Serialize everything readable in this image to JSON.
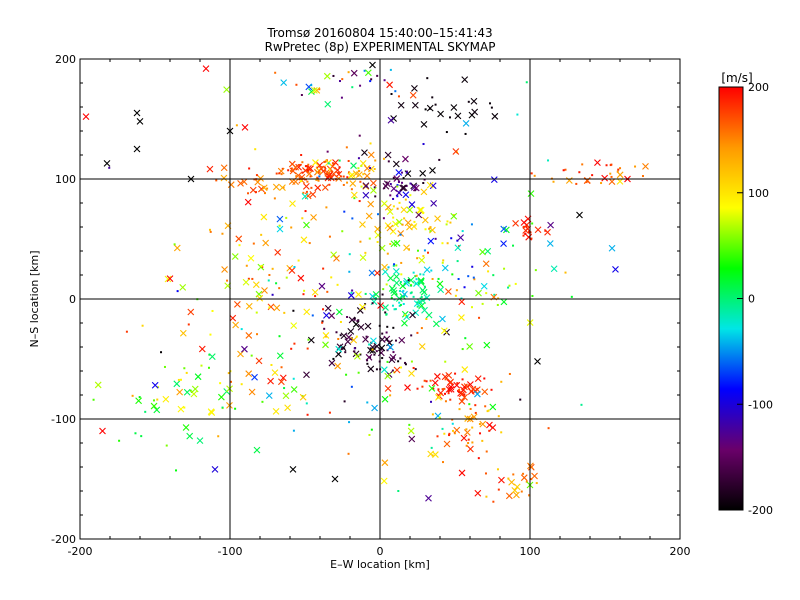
{
  "chart_data": {
    "type": "scatter",
    "title": "Tromsø 20160804 15:40:00–15:41:43",
    "subtitle": "RwPretec (8p) EXPERIMENTAL SKYMAP",
    "xlabel": "E–W location [km]",
    "ylabel": "N–S location [km]",
    "xlim": [
      -200,
      200
    ],
    "ylim": [
      -200,
      200
    ],
    "xticks": [
      -200,
      -100,
      0,
      100,
      200
    ],
    "yticks": [
      -200,
      -100,
      0,
      100,
      200
    ],
    "grid": true,
    "colorbar": {
      "label": "[m/s]",
      "min": -200,
      "max": 200,
      "ticks": [
        -200,
        -100,
        0,
        100,
        200
      ],
      "colors": [
        "#000000",
        "#6a006a",
        "#0000ff",
        "#00e6e6",
        "#00ff00",
        "#ffff00",
        "#ff9900",
        "#ff0000"
      ]
    },
    "marker_types": [
      "cross",
      "dot"
    ],
    "clusters": [
      {
        "cx": -45,
        "cy": 105,
        "sx": 12,
        "sy": 6,
        "n": 70,
        "vmin": 150,
        "vmax": 200
      },
      {
        "cx": -20,
        "cy": 105,
        "sx": 15,
        "sy": 8,
        "n": 40,
        "vmin": 60,
        "vmax": 180
      },
      {
        "cx": 15,
        "cy": 95,
        "sx": 12,
        "sy": 12,
        "n": 50,
        "vmin": -200,
        "vmax": -80
      },
      {
        "cx": 20,
        "cy": 60,
        "sx": 15,
        "sy": 15,
        "n": 60,
        "vmin": 60,
        "vmax": 150
      },
      {
        "cx": 15,
        "cy": 5,
        "sx": 12,
        "sy": 12,
        "n": 70,
        "vmin": -40,
        "vmax": 20
      },
      {
        "cx": -15,
        "cy": -25,
        "sx": 15,
        "sy": 15,
        "n": 60,
        "vmin": -200,
        "vmax": -150
      },
      {
        "cx": 0,
        "cy": -45,
        "sx": 10,
        "sy": 8,
        "n": 30,
        "vmin": -200,
        "vmax": -150
      },
      {
        "cx": 50,
        "cy": -75,
        "sx": 12,
        "sy": 6,
        "n": 50,
        "vmin": 160,
        "vmax": 200
      },
      {
        "cx": 55,
        "cy": -110,
        "sx": 15,
        "sy": 12,
        "n": 40,
        "vmin": 100,
        "vmax": 200
      },
      {
        "cx": 90,
        "cy": -150,
        "sx": 10,
        "sy": 10,
        "n": 25,
        "vmin": 110,
        "vmax": 200
      },
      {
        "cx": 100,
        "cy": 55,
        "sx": 5,
        "sy": 5,
        "n": 20,
        "vmin": 180,
        "vmax": 200
      },
      {
        "cx": 140,
        "cy": 105,
        "sx": 20,
        "sy": 5,
        "n": 30,
        "vmin": 130,
        "vmax": 200
      },
      {
        "cx": -80,
        "cy": 95,
        "sx": 15,
        "sy": 10,
        "n": 30,
        "vmin": 130,
        "vmax": 200
      },
      {
        "cx": 40,
        "cy": 160,
        "sx": 20,
        "sy": 10,
        "n": 25,
        "vmin": -200,
        "vmax": -190
      },
      {
        "cx": -20,
        "cy": 180,
        "sx": 25,
        "sy": 8,
        "n": 30,
        "vmin": -200,
        "vmax": 200
      },
      {
        "cx": -120,
        "cy": -80,
        "sx": 35,
        "sy": 20,
        "n": 60,
        "vmin": 0,
        "vmax": 150
      },
      {
        "cx": -70,
        "cy": -20,
        "sx": 35,
        "sy": 30,
        "n": 60,
        "vmin": 40,
        "vmax": 200
      },
      {
        "cx": -70,
        "cy": 40,
        "sx": 30,
        "sy": 25,
        "n": 40,
        "vmin": 50,
        "vmax": 200
      },
      {
        "cx": 60,
        "cy": 20,
        "sx": 25,
        "sy": 25,
        "n": 50,
        "vmin": -100,
        "vmax": 200
      },
      {
        "cx": 0,
        "cy": 20,
        "sx": 60,
        "sy": 70,
        "n": 140,
        "vmin": -200,
        "vmax": 200
      },
      {
        "cx": 20,
        "cy": -80,
        "sx": 40,
        "sy": 30,
        "n": 60,
        "vmin": -50,
        "vmax": 200
      }
    ],
    "isolated_points": [
      {
        "x": -162,
        "y": 155,
        "v": -200,
        "m": "cross"
      },
      {
        "x": -160,
        "y": 148,
        "v": -200,
        "m": "cross"
      },
      {
        "x": -182,
        "y": 113,
        "v": -200,
        "m": "cross"
      },
      {
        "x": -162,
        "y": 125,
        "v": -200,
        "m": "cross"
      },
      {
        "x": -196,
        "y": 152,
        "v": 200,
        "m": "cross"
      },
      {
        "x": -116,
        "y": 192,
        "v": 200,
        "m": "cross"
      },
      {
        "x": -126,
        "y": 100,
        "v": -200,
        "m": "cross"
      },
      {
        "x": -185,
        "y": -110,
        "v": 200,
        "m": "cross"
      },
      {
        "x": -140,
        "y": 17,
        "v": 200,
        "m": "cross"
      },
      {
        "x": -90,
        "y": 143,
        "v": 200,
        "m": "cross"
      },
      {
        "x": -100,
        "y": 140,
        "v": -200,
        "m": "cross"
      },
      {
        "x": 105,
        "y": -52,
        "v": -200,
        "m": "cross"
      },
      {
        "x": 133,
        "y": 70,
        "v": -200,
        "m": "cross"
      },
      {
        "x": 160,
        "y": 98,
        "v": 100,
        "m": "cross"
      },
      {
        "x": 165,
        "y": 100,
        "v": 200,
        "m": "cross"
      },
      {
        "x": -120,
        "y": -118,
        "v": 0,
        "m": "cross"
      },
      {
        "x": -110,
        "y": -142,
        "v": -100,
        "m": "cross"
      },
      {
        "x": -58,
        "y": -142,
        "v": -200,
        "m": "cross"
      },
      {
        "x": -30,
        "y": -150,
        "v": -200,
        "m": "cross"
      },
      {
        "x": 100,
        "y": -155,
        "v": 50,
        "m": "cross"
      },
      {
        "x": -5,
        "y": 195,
        "v": -200,
        "m": "cross"
      }
    ]
  }
}
